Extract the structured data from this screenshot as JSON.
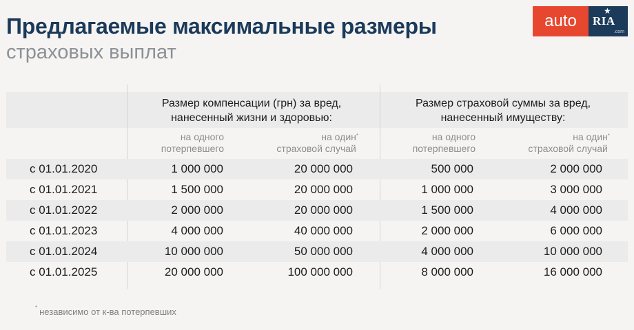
{
  "title": {
    "line1": "Предлагаемые максимальные размеры",
    "line2": "страховых выплат"
  },
  "logo": {
    "left": "auto",
    "right": "RIA",
    "suffix": ".com"
  },
  "table": {
    "group1": "Размер компенсации (грн) за вред, нанесенный жизни и здоровью:",
    "group2": "Размер страховой суммы за вред, нанесенный имуществу:",
    "sub1": "на одного потерпевшего",
    "sub2": "на один страховой случай",
    "sub3": "на одного потерпевшего",
    "sub4": "на один страховой случай",
    "sub_mark": "*",
    "rows": [
      {
        "date": "с 01.01.2020",
        "c1": "1 000 000",
        "c2": "20 000 000",
        "c3": "500 000",
        "c4": "2 000 000"
      },
      {
        "date": "с 01.01.2021",
        "c1": "1 500 000",
        "c2": "20 000 000",
        "c3": "1 000 000",
        "c4": "3 000 000"
      },
      {
        "date": "с 01.01.2022",
        "c1": "2 000 000",
        "c2": "20 000 000",
        "c3": "1 500 000",
        "c4": "4 000 000"
      },
      {
        "date": "с 01.01.2023",
        "c1": "4 000 000",
        "c2": "40 000 000",
        "c3": "2 000 000",
        "c4": "6 000 000"
      },
      {
        "date": "с 01.01.2024",
        "c1": "10 000 000",
        "c2": "50 000 000",
        "c3": "4 000 000",
        "c4": "10 000 000"
      },
      {
        "date": "с 01.01.2025",
        "c1": "20 000 000",
        "c2": "100 000 000",
        "c3": "8 000 000",
        "c4": "16 000 000"
      }
    ]
  },
  "footnote": {
    "mark": "*",
    "text": "независимо от к-ва потерпевших"
  }
}
